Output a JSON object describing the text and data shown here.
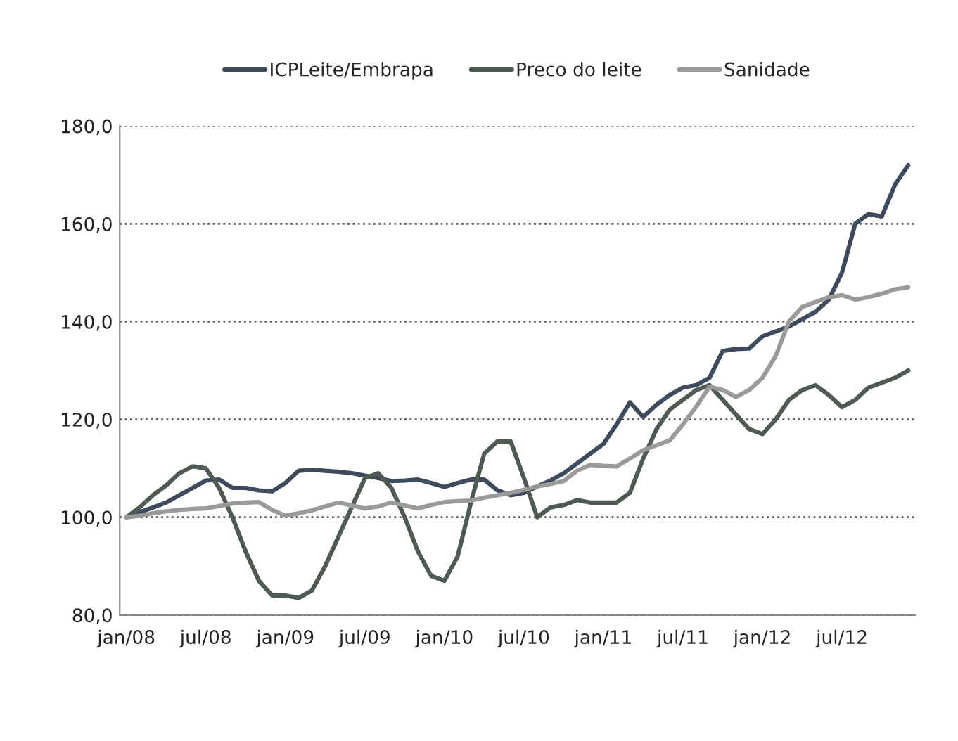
{
  "chart_data": {
    "type": "line",
    "categories": [
      "jan/08",
      null,
      null,
      null,
      null,
      null,
      "jul/08",
      null,
      null,
      null,
      null,
      null,
      "jan/09",
      null,
      null,
      null,
      null,
      null,
      "jul/09",
      null,
      null,
      null,
      null,
      null,
      "jan/10",
      null,
      null,
      null,
      null,
      null,
      "jul/10",
      null,
      null,
      null,
      null,
      null,
      "jan/11",
      null,
      null,
      null,
      null,
      null,
      "jul/11",
      null,
      null,
      null,
      null,
      null,
      "jan/12",
      null,
      null,
      null,
      null,
      null,
      "jul/12",
      null,
      null,
      null,
      null,
      null
    ],
    "series": [
      {
        "name": "ICPLeite/Embrapa",
        "color": "#3d4b5c",
        "values": [
          100,
          101,
          102,
          103,
          104.5,
          106,
          107.5,
          107.7,
          106,
          106,
          105.5,
          105.3,
          107,
          109.5,
          109.7,
          109.5,
          109.3,
          109,
          108.5,
          108,
          107.4,
          107.5,
          107.7,
          107,
          106.2,
          107,
          107.7,
          107.7,
          105.5,
          104.5,
          105,
          106.3,
          107.5,
          109,
          111,
          113,
          115,
          119,
          123.5,
          120.5,
          123,
          125,
          126.5,
          127,
          128.5,
          134,
          134.4,
          134.5,
          137,
          138,
          139,
          140.5,
          142,
          144.5,
          150,
          160,
          162,
          161.5,
          168,
          172
        ]
      },
      {
        "name": "Preco do leite",
        "color": "#4e5a52",
        "values": [
          100,
          102,
          104.5,
          106.5,
          109,
          110.4,
          110,
          106,
          100,
          93,
          87,
          84,
          84,
          83.5,
          85,
          90,
          96,
          102,
          108,
          109,
          106,
          100,
          93,
          88,
          87,
          92,
          103,
          113,
          115.5,
          115.5,
          108,
          100,
          102,
          102.5,
          103.5,
          103,
          103,
          103,
          105,
          112,
          118,
          122,
          124,
          126,
          127,
          124,
          121,
          118,
          117,
          120,
          124,
          126,
          127,
          125,
          122.5,
          124,
          126.5,
          127.5,
          128.5,
          130
        ]
      },
      {
        "name": "Sanidade",
        "color": "#9a9a9a",
        "values": [
          100,
          100.3,
          100.8,
          101.2,
          101.5,
          101.7,
          101.8,
          102.3,
          102.8,
          103,
          103.1,
          101.5,
          100.3,
          100.8,
          101.4,
          102.2,
          103,
          102.4,
          101.8,
          102.2,
          103,
          102.4,
          101.8,
          102.5,
          103.1,
          103.3,
          103.4,
          104,
          104.5,
          105,
          105.6,
          106.3,
          106.8,
          107.4,
          109.5,
          110.7,
          110.5,
          110.4,
          112,
          113.7,
          114.7,
          115.7,
          119,
          122.6,
          126.7,
          126,
          124.6,
          126,
          128.5,
          133,
          140,
          143,
          144,
          145,
          145.4,
          144.5,
          145,
          145.7,
          146.6,
          147
        ]
      }
    ],
    "ylim": [
      80,
      180
    ],
    "yticks": [
      {
        "value": 80,
        "label": "80,0"
      },
      {
        "value": 100,
        "label": "100,0"
      },
      {
        "value": 120,
        "label": "120,0"
      },
      {
        "value": 140,
        "label": "140,0"
      },
      {
        "value": 160,
        "label": "160,0"
      },
      {
        "value": 180,
        "label": "180,0"
      }
    ],
    "grid": "y",
    "legend": "top",
    "marker": "none",
    "line_style": "solid"
  }
}
